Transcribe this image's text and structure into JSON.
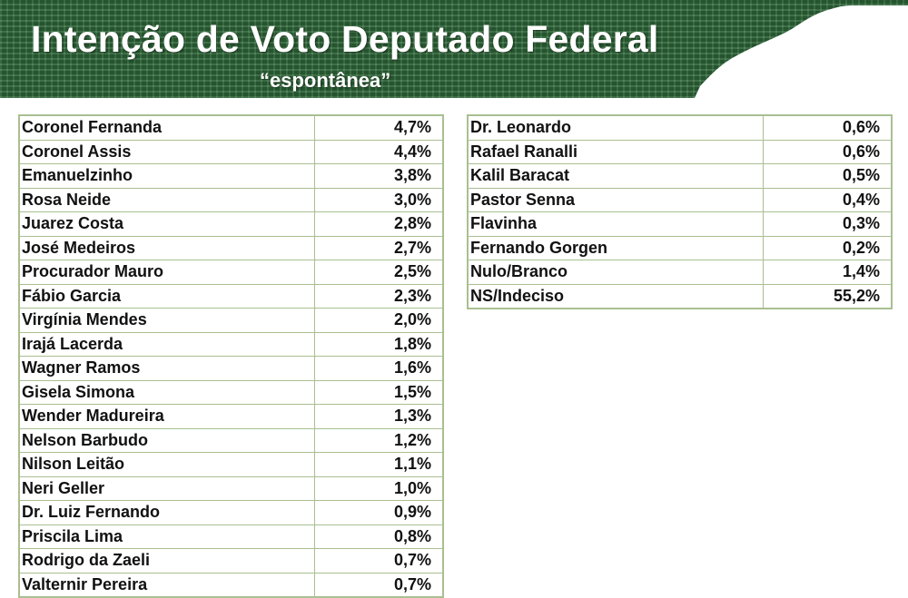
{
  "header": {
    "title": "Intenção de Voto Deputado Federal",
    "subtitle": "“espontânea”"
  },
  "colors": {
    "banner_green": "#2f6b3a",
    "table_border": "#a9bf91"
  },
  "left_table": [
    {
      "name": "Coronel Fernanda",
      "pct": "4,7%"
    },
    {
      "name": "Coronel Assis",
      "pct": "4,4%"
    },
    {
      "name": "Emanuelzinho",
      "pct": "3,8%"
    },
    {
      "name": "Rosa Neide",
      "pct": "3,0%"
    },
    {
      "name": "Juarez Costa",
      "pct": "2,8%"
    },
    {
      "name": "José Medeiros",
      "pct": "2,7%"
    },
    {
      "name": "Procurador Mauro",
      "pct": "2,5%"
    },
    {
      "name": "Fábio Garcia",
      "pct": "2,3%"
    },
    {
      "name": "Virgínia Mendes",
      "pct": "2,0%"
    },
    {
      "name": "Irajá Lacerda",
      "pct": "1,8%"
    },
    {
      "name": "Wagner Ramos",
      "pct": "1,6%"
    },
    {
      "name": "Gisela Simona",
      "pct": "1,5%"
    },
    {
      "name": "Wender Madureira",
      "pct": "1,3%"
    },
    {
      "name": "Nelson Barbudo",
      "pct": "1,2%"
    },
    {
      "name": "Nilson Leitão",
      "pct": "1,1%"
    },
    {
      "name": "Neri Geller",
      "pct": "1,0%"
    },
    {
      "name": "Dr. Luiz Fernando",
      "pct": "0,9%"
    },
    {
      "name": "Priscila Lima",
      "pct": "0,8%"
    },
    {
      "name": "Rodrigo da Zaeli",
      "pct": "0,7%"
    },
    {
      "name": "Valternir Pereira",
      "pct": "0,7%"
    }
  ],
  "right_table": [
    {
      "name": "Dr. Leonardo",
      "pct": "0,6%"
    },
    {
      "name": "Rafael Ranalli",
      "pct": "0,6%"
    },
    {
      "name": "Kalil Baracat",
      "pct": "0,5%"
    },
    {
      "name": "Pastor Senna",
      "pct": "0,4%"
    },
    {
      "name": "Flavinha",
      "pct": "0,3%"
    },
    {
      "name": "Fernando Gorgen",
      "pct": "0,2%"
    },
    {
      "name": "Nulo/Branco",
      "pct": "1,4%"
    },
    {
      "name": "NS/Indeciso",
      "pct": "55,2%"
    }
  ]
}
